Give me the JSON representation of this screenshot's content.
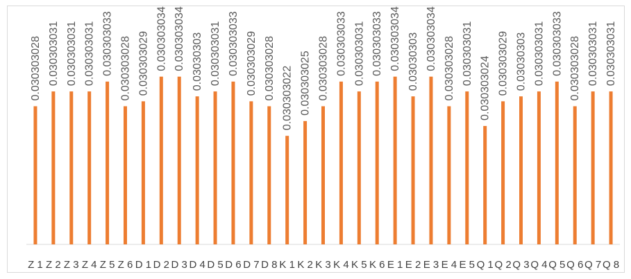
{
  "chart_data": {
    "type": "bar",
    "categories": [
      "Z 1",
      "Z 2",
      "Z 3",
      "Z 4",
      "Z 5",
      "Z 6",
      "D 1",
      "D 2",
      "D 3",
      "D 4",
      "D 5",
      "D 6",
      "D 7",
      "D 8",
      "K 1",
      "K 2",
      "K 3",
      "K 4",
      "K 5",
      "K 6",
      "E 1",
      "E 2",
      "E 3",
      "E 4",
      "E 5",
      "Q 1",
      "Q 2",
      "Q 3",
      "Q 4",
      "Q 5",
      "Q 6",
      "Q 7",
      "Q 8"
    ],
    "values": [
      0.030303028,
      0.030303031,
      0.030303031,
      0.030303031,
      0.030303033,
      0.030303028,
      0.030303029,
      0.030303034,
      0.030303034,
      0.03030303,
      0.030303031,
      0.030303033,
      0.030303029,
      0.030303028,
      0.030303022,
      0.030303025,
      0.030303028,
      0.030303033,
      0.030303031,
      0.030303033,
      0.030303034,
      0.03030303,
      0.030303034,
      0.030303028,
      0.030303031,
      0.030303024,
      0.030303029,
      0.03030303,
      0.030303031,
      0.030303033,
      0.030303028,
      0.030303031,
      0.030303031
    ],
    "data_labels": [
      "0.030303028",
      "0.030303031",
      "0.030303031",
      "0.030303031",
      "0.030303033",
      "0.030303028",
      "0.030303029",
      "0.030303034",
      "0.030303034",
      "0.03030303",
      "0.030303031",
      "0.030303033",
      "0.030303029",
      "0.030303028",
      "0.030303022",
      "0.030303025",
      "0.030303028",
      "0.030303033",
      "0.030303031",
      "0.030303033",
      "0.030303034",
      "0.03030303",
      "0.030303034",
      "0.030303028",
      "0.030303031",
      "0.030303024",
      "0.030303029",
      "0.03030303",
      "0.030303031",
      "0.030303033",
      "0.030303028",
      "0.030303031",
      "0.030303031"
    ],
    "title": "",
    "xlabel": "",
    "ylabel": "",
    "ylim": [
      0.030303,
      0.0303030355
    ],
    "grid": false,
    "legend": "none",
    "colors": {
      "bar": "#ed7d31",
      "label": "#595959",
      "axis": "#d9d9d9"
    }
  }
}
